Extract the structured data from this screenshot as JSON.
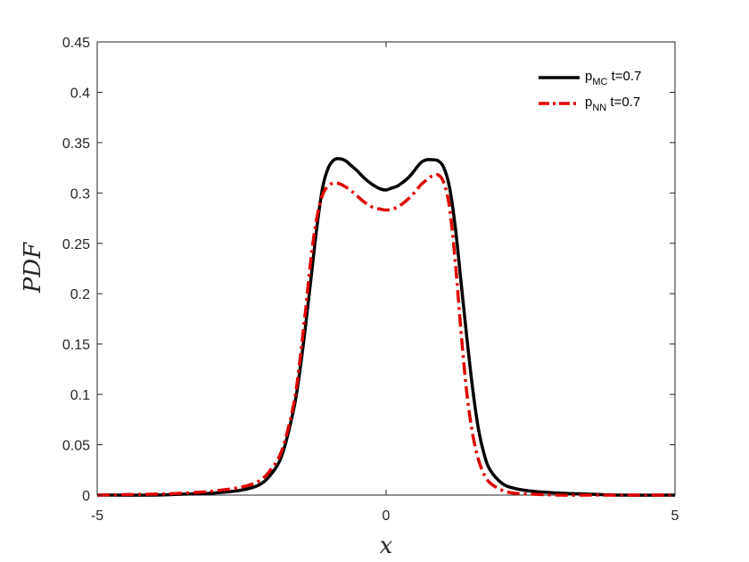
{
  "chart_data": {
    "type": "line",
    "xlabel": "x",
    "ylabel": "PDF",
    "xlim": [
      -5,
      5
    ],
    "ylim": [
      0,
      0.45
    ],
    "xticks": [
      -5,
      0,
      5
    ],
    "xtick_labels": [
      "-5",
      "0",
      "5"
    ],
    "yticks": [
      0,
      0.05,
      0.1,
      0.15,
      0.2,
      0.25,
      0.3,
      0.35,
      0.4,
      0.45
    ],
    "ytick_labels": [
      "0",
      "0.05",
      "0.1",
      "0.15",
      "0.2",
      "0.25",
      "0.3",
      "0.35",
      "0.4",
      "0.45"
    ],
    "grid": false,
    "legend_position": "top-right",
    "series": [
      {
        "name": "p_MC t=0.7",
        "legend_main": "p",
        "legend_sub": "MC",
        "legend_rest": " t=0.7",
        "color": "#000000",
        "style": "solid",
        "x": [
          -5,
          -4,
          -3.5,
          -3,
          -2.5,
          -2.2,
          -2,
          -1.8,
          -1.6,
          -1.5,
          -1.4,
          -1.3,
          -1.2,
          -1.1,
          -1.0,
          -0.9,
          -0.8,
          -0.7,
          -0.6,
          -0.5,
          -0.4,
          -0.3,
          -0.2,
          -0.1,
          0,
          0.1,
          0.2,
          0.3,
          0.4,
          0.5,
          0.6,
          0.7,
          0.8,
          0.9,
          1.0,
          1.1,
          1.2,
          1.3,
          1.4,
          1.5,
          1.6,
          1.7,
          1.8,
          2.0,
          2.2,
          2.5,
          3.0,
          3.5,
          4.0,
          5.0
        ],
        "y": [
          0,
          0,
          0.001,
          0.002,
          0.005,
          0.01,
          0.02,
          0.04,
          0.085,
          0.12,
          0.165,
          0.215,
          0.265,
          0.305,
          0.325,
          0.333,
          0.334,
          0.332,
          0.327,
          0.322,
          0.316,
          0.311,
          0.307,
          0.304,
          0.303,
          0.305,
          0.307,
          0.311,
          0.316,
          0.323,
          0.33,
          0.333,
          0.333,
          0.332,
          0.325,
          0.305,
          0.265,
          0.21,
          0.155,
          0.105,
          0.065,
          0.04,
          0.025,
          0.012,
          0.007,
          0.004,
          0.002,
          0.001,
          0,
          0
        ]
      },
      {
        "name": "p_NN t=0.7",
        "legend_main": "p",
        "legend_sub": "NN",
        "legend_rest": " t=0.7",
        "color": "#e00000",
        "style": "dashdot",
        "x": [
          -5,
          -4,
          -3.5,
          -3,
          -2.5,
          -2.2,
          -2,
          -1.8,
          -1.6,
          -1.5,
          -1.4,
          -1.3,
          -1.2,
          -1.1,
          -1.0,
          -0.9,
          -0.8,
          -0.7,
          -0.6,
          -0.5,
          -0.4,
          -0.3,
          -0.2,
          -0.1,
          0,
          0.1,
          0.2,
          0.3,
          0.4,
          0.5,
          0.6,
          0.7,
          0.8,
          0.9,
          1.0,
          1.1,
          1.2,
          1.3,
          1.4,
          1.5,
          1.6,
          1.7,
          1.8,
          2.0,
          2.2,
          2.5,
          3.0,
          3.5,
          4.0,
          5.0
        ],
        "y": [
          0,
          0.001,
          0.002,
          0.004,
          0.008,
          0.014,
          0.025,
          0.045,
          0.09,
          0.13,
          0.18,
          0.235,
          0.275,
          0.298,
          0.307,
          0.31,
          0.309,
          0.306,
          0.302,
          0.297,
          0.292,
          0.288,
          0.285,
          0.284,
          0.283,
          0.284,
          0.286,
          0.29,
          0.295,
          0.301,
          0.308,
          0.313,
          0.317,
          0.318,
          0.31,
          0.285,
          0.23,
          0.16,
          0.1,
          0.06,
          0.035,
          0.02,
          0.012,
          0.005,
          0.002,
          0.001,
          0,
          0,
          0,
          0
        ]
      }
    ]
  }
}
